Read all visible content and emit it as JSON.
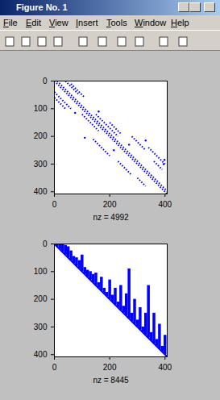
{
  "window": {
    "title": "Figure No. 1",
    "menu": [
      "File",
      "Edit",
      "View",
      "Insert",
      "Tools",
      "Window",
      "Help"
    ]
  },
  "chart_data": [
    {
      "type": "spy",
      "xlabel": "nz = 4992",
      "color": "#0000ff",
      "line_style": "dotted",
      "marker": "point",
      "xlim": [
        0,
        408
      ],
      "ylim": [
        0,
        408
      ],
      "xticks": [
        0,
        200,
        400
      ],
      "yticks": [
        0,
        100,
        200,
        300,
        400
      ],
      "segments": [
        [
          0,
          0,
          408,
          408
        ],
        [
          10,
          0,
          408,
          398
        ],
        [
          40,
          0,
          90,
          50
        ],
        [
          60,
          10,
          110,
          60
        ],
        [
          0,
          40,
          60,
          100
        ],
        [
          0,
          60,
          40,
          100
        ],
        [
          100,
          120,
          160,
          180
        ],
        [
          150,
          120,
          230,
          200
        ],
        [
          140,
          210,
          200,
          270
        ],
        [
          200,
          150,
          240,
          190
        ],
        [
          280,
          200,
          330,
          250
        ],
        [
          340,
          240,
          400,
          300
        ],
        [
          230,
          290,
          280,
          340
        ],
        [
          300,
          350,
          330,
          380
        ],
        [
          360,
          290,
          390,
          320
        ]
      ],
      "points": [
        [
          110,
          205
        ],
        [
          75,
          115
        ],
        [
          215,
          250
        ],
        [
          395,
          300
        ],
        [
          398,
          285
        ],
        [
          330,
          215
        ],
        [
          160,
          110
        ],
        [
          270,
          230
        ]
      ]
    },
    {
      "type": "spy",
      "xlabel": "nz = 8445",
      "color": "#0000ff",
      "line_style": "solid",
      "xlim": [
        0,
        408
      ],
      "ylim": [
        0,
        408
      ],
      "xticks": [
        0,
        200,
        400
      ],
      "yticks": [
        0,
        100,
        200,
        300,
        400
      ],
      "segments": [
        [
          0,
          0,
          408,
          408
        ]
      ],
      "columns": {
        "x": [
          0,
          10,
          20,
          30,
          40,
          50,
          60,
          70,
          80,
          90,
          100,
          110,
          120,
          130,
          140,
          150,
          160,
          170,
          180,
          190,
          200,
          210,
          220,
          230,
          240,
          250,
          260,
          270,
          280,
          290,
          300,
          310,
          320,
          330,
          340,
          350,
          360,
          370,
          380,
          390,
          400
        ],
        "top": [
          0,
          0,
          0,
          2,
          5,
          10,
          25,
          45,
          50,
          60,
          40,
          85,
          95,
          100,
          110,
          105,
          140,
          120,
          160,
          175,
          130,
          185,
          160,
          210,
          150,
          225,
          180,
          90,
          250,
          200,
          275,
          230,
          300,
          250,
          150,
          320,
          250,
          345,
          290,
          370,
          330
        ],
        "bottom": [
          0,
          10,
          20,
          30,
          40,
          50,
          60,
          70,
          80,
          90,
          100,
          110,
          120,
          130,
          140,
          150,
          160,
          170,
          180,
          190,
          200,
          210,
          220,
          230,
          240,
          250,
          260,
          270,
          280,
          290,
          300,
          310,
          320,
          330,
          340,
          350,
          360,
          370,
          380,
          390,
          400
        ]
      }
    }
  ]
}
